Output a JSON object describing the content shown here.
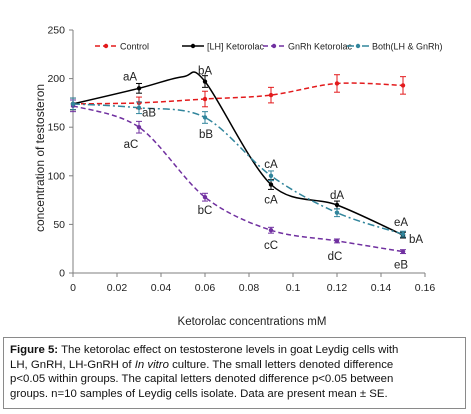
{
  "chart_data": {
    "type": "line",
    "ylabel": "concentration of testosteron",
    "xlabel": "Ketorolac concentrations mM",
    "xlim": [
      0,
      0.16
    ],
    "ylim": [
      0,
      250
    ],
    "x_ticks": [
      "0",
      "0.02",
      "0.04",
      "0.06",
      "0.08",
      "0.1",
      "0.12",
      "0.14",
      "0.16"
    ],
    "y_ticks": [
      "0",
      "50",
      "100",
      "150",
      "200",
      "250"
    ],
    "legend_position": "top",
    "series": [
      {
        "name": "Control",
        "key": "control",
        "color": "#e31a1c",
        "dash": "dashed",
        "marker": "dot",
        "x": [
          0,
          0.03,
          0.06,
          0.09,
          0.12,
          0.15
        ],
        "y": [
          174,
          175,
          179,
          183,
          195,
          193
        ],
        "err": [
          6,
          6,
          8,
          8,
          9,
          9
        ]
      },
      {
        "name": "[LH] Ketorolac",
        "key": "lh",
        "color": "#000000",
        "dash": "solid",
        "marker": "dot",
        "x": [
          0,
          0.03,
          0.06,
          0.09,
          0.12,
          0.15
        ],
        "y": [
          174,
          190,
          197,
          91,
          70,
          39
        ],
        "err": [
          6,
          5,
          6,
          5,
          4,
          3
        ],
        "extra_points": [
          {
            "x": 0.05,
            "y": 202
          }
        ]
      },
      {
        "name": "GnRh Ketorolac",
        "key": "gnrh",
        "color": "#7030a0",
        "dash": "dashed",
        "marker": "dot",
        "x": [
          0,
          0.03,
          0.06,
          0.09,
          0.12,
          0.15
        ],
        "y": [
          172,
          150,
          78,
          44,
          33,
          22
        ],
        "err": [
          6,
          6,
          4,
          3,
          2,
          2
        ]
      },
      {
        "name": "Both(LH & GnRh)",
        "key": "both",
        "color": "#31859c",
        "dash": "dashdot",
        "marker": "dot",
        "x": [
          0,
          0.03,
          0.06,
          0.09,
          0.12,
          0.15
        ],
        "y": [
          174,
          170,
          160,
          100,
          62,
          40
        ],
        "err": [
          6,
          6,
          6,
          5,
          4,
          3
        ]
      }
    ],
    "annotations": [
      {
        "text": "aA",
        "x": 0.03,
        "y": 190,
        "dx": -9,
        "dy": -12
      },
      {
        "text": "aB",
        "x": 0.03,
        "y": 163,
        "dx": 10,
        "dy": -2
      },
      {
        "text": "aC",
        "x": 0.03,
        "y": 141,
        "dx": -8,
        "dy": 8
      },
      {
        "text": "bA",
        "x": 0.06,
        "y": 197,
        "dx": 0,
        "dy": -11
      },
      {
        "text": "bB",
        "x": 0.06,
        "y": 151,
        "dx": 1,
        "dy": 8
      },
      {
        "text": "bC",
        "x": 0.06,
        "y": 73,
        "dx": 0,
        "dy": 8
      },
      {
        "text": "cA",
        "x": 0.09,
        "y": 106,
        "dx": 0,
        "dy": -6
      },
      {
        "text": "cA",
        "x": 0.09,
        "y": 87,
        "dx": 0,
        "dy": 11
      },
      {
        "text": "cC",
        "x": 0.09,
        "y": 40,
        "dx": 0,
        "dy": 11
      },
      {
        "text": "dA",
        "x": 0.12,
        "y": 74,
        "dx": 0,
        "dy": -6
      },
      {
        "text": "dC",
        "x": 0.12,
        "y": 29,
        "dx": -2,
        "dy": 11
      },
      {
        "text": "eA",
        "x": 0.15,
        "y": 43,
        "dx": -2,
        "dy": -9
      },
      {
        "text": "bA",
        "x": 0.15,
        "y": 38,
        "dx": 13,
        "dy": 3
      },
      {
        "text": "eB",
        "x": 0.15,
        "y": 19,
        "dx": -2,
        "dy": 10
      }
    ]
  },
  "caption": {
    "label": "Figure 5:",
    "line1": "The ketorolac effect on testosterone levels in goat Leydig cells with",
    "line2_pre": "LH, GnRH, LH-GnRH of",
    "line2_italic": "In vitro",
    "line2_post": "culture. The small letters denoted difference",
    "line3": "p<0.05 within groups. The capital letters denoted difference p<0.05 between",
    "line4": "groups. n=10 samples of Leydig cells isolate. Data are present mean ± SE."
  }
}
